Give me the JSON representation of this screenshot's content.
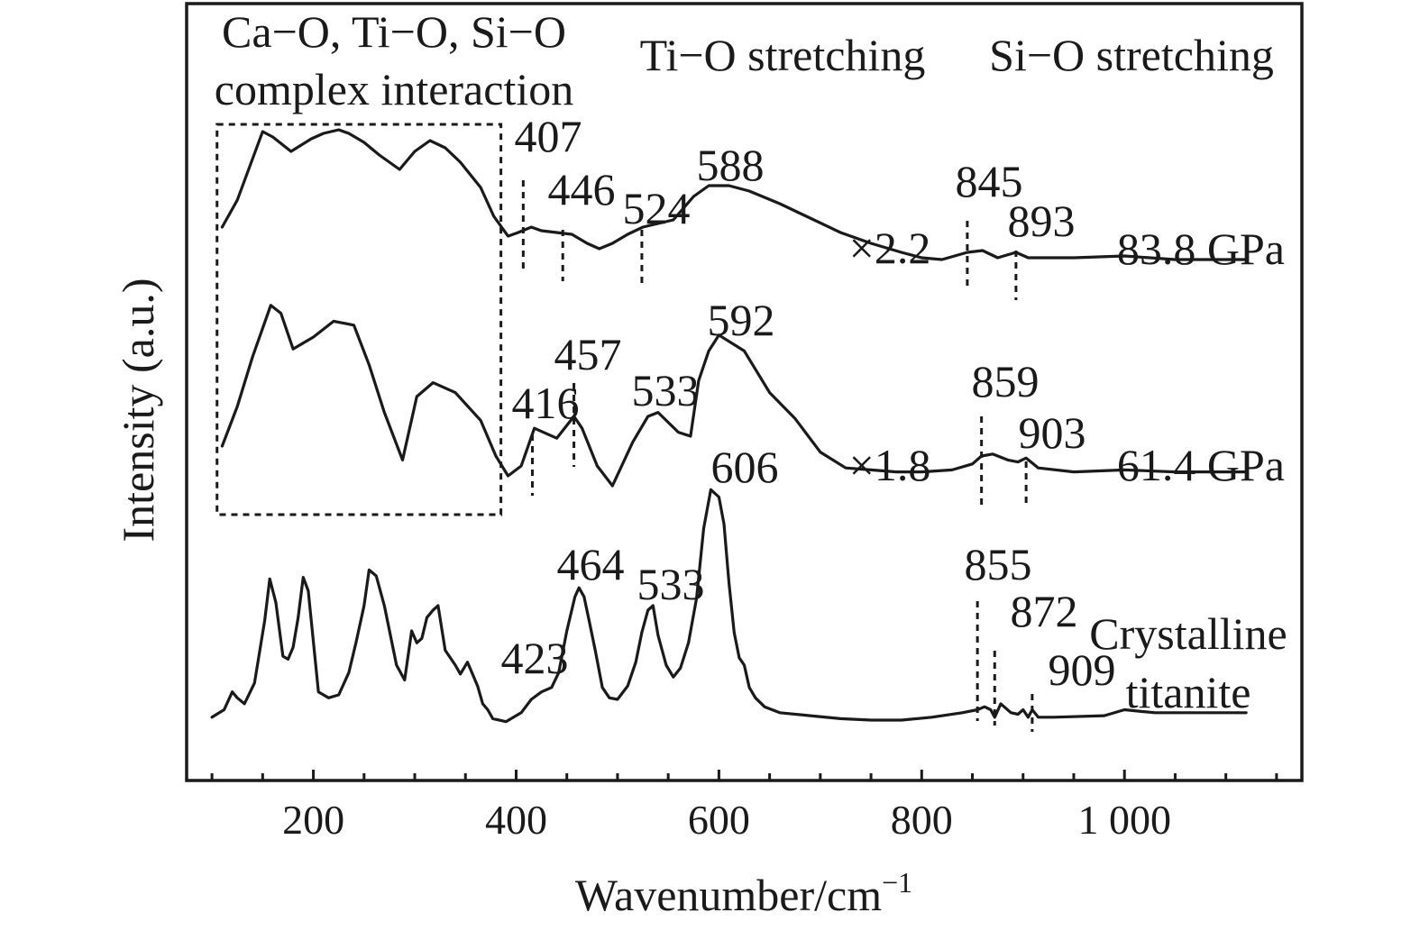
{
  "chart_data": {
    "type": "line",
    "title": "",
    "xlabel": "Wavenumber/cm",
    "xlabel_superscript": "−1",
    "ylabel": "Intensity (a.u.)",
    "xlim": [
      75,
      1175
    ],
    "xticks": [
      200,
      400,
      600,
      800,
      1000
    ],
    "xtick_labels": [
      "200",
      "400",
      "600",
      "800",
      "1 000"
    ],
    "grid": false,
    "region_labels": [
      {
        "id": "region-complex",
        "lines": [
          "Ca−O, Ti−O, Si−O",
          "complex interaction"
        ]
      },
      {
        "id": "region-tio",
        "lines": [
          "Ti−O stretching"
        ]
      },
      {
        "id": "region-sio",
        "lines": [
          "Si−O stretching"
        ]
      }
    ],
    "highlight_box_range": [
      105,
      385
    ],
    "series": [
      {
        "name": "83.8 GPa",
        "scale_label": "×2.2",
        "x": [
          110,
          125,
          150,
          160,
          178,
          198,
          210,
          225,
          235,
          250,
          265,
          285,
          300,
          315,
          330,
          345,
          365,
          378,
          392,
          402,
          415,
          425,
          440,
          455,
          470,
          482,
          495,
          510,
          525,
          540,
          555,
          575,
          590,
          610,
          630,
          660,
          690,
          720,
          750,
          780,
          800,
          820,
          845,
          860,
          875,
          893,
          905,
          925,
          950,
          1000,
          1050,
          1100,
          1120
        ],
        "y": [
          30,
          45,
          83,
          80,
          72,
          79,
          82,
          84,
          82,
          77,
          70,
          62,
          72,
          78,
          74,
          66,
          52,
          36,
          25,
          27,
          30,
          28,
          27,
          26,
          21,
          18,
          21,
          26,
          30,
          32,
          34,
          47,
          53,
          53,
          50,
          43,
          35,
          27,
          21,
          16,
          13,
          12,
          16,
          17,
          13,
          16,
          13,
          13,
          13,
          14,
          12,
          12,
          12
        ],
        "peaks": [
          {
            "wavenumber": 407,
            "label": "407"
          },
          {
            "wavenumber": 446,
            "label": "446"
          },
          {
            "wavenumber": 524,
            "label": "524"
          },
          {
            "wavenumber": 588,
            "label": "588"
          },
          {
            "wavenumber": 845,
            "label": "845"
          },
          {
            "wavenumber": 893,
            "label": "893"
          }
        ]
      },
      {
        "name": "61.4 GPa",
        "scale_label": "×1.8",
        "x": [
          110,
          125,
          140,
          158,
          168,
          180,
          200,
          220,
          240,
          255,
          270,
          288,
          302,
          318,
          340,
          365,
          380,
          392,
          405,
          418,
          440,
          457,
          465,
          480,
          495,
          515,
          530,
          540,
          560,
          572,
          580,
          590,
          600,
          625,
          650,
          675,
          700,
          725,
          750,
          775,
          800,
          830,
          850,
          859,
          870,
          885,
          895,
          903,
          915,
          950,
          1000,
          1050,
          1100,
          1120
        ],
        "y": [
          25,
          45,
          70,
          96,
          92,
          74,
          80,
          88,
          86,
          66,
          42,
          18,
          50,
          57,
          52,
          38,
          20,
          10,
          15,
          34,
          29,
          40,
          34,
          15,
          5,
          27,
          40,
          42,
          32,
          30,
          58,
          73,
          81,
          73,
          52,
          39,
          22,
          14,
          13,
          12,
          12,
          13,
          16,
          20,
          21,
          18,
          17,
          19,
          14,
          12,
          13,
          12,
          12,
          12
        ],
        "peaks": [
          {
            "wavenumber": 416,
            "label": "416"
          },
          {
            "wavenumber": 457,
            "label": "457"
          },
          {
            "wavenumber": 533,
            "label": "533"
          },
          {
            "wavenumber": 592,
            "label": "592"
          },
          {
            "wavenumber": 859,
            "label": "859"
          },
          {
            "wavenumber": 903,
            "label": "903"
          }
        ]
      },
      {
        "name": "Crystalline titanite",
        "name_lines": [
          "Crystalline",
          "titanite"
        ],
        "x": [
          100,
          112,
          120,
          125,
          132,
          142,
          152,
          157,
          163,
          170,
          175,
          180,
          185,
          190,
          195,
          205,
          215,
          225,
          235,
          242,
          250,
          255,
          262,
          270,
          282,
          290,
          297,
          302,
          307,
          312,
          318,
          323,
          330,
          340,
          345,
          352,
          357,
          362,
          367,
          372,
          377,
          390,
          405,
          415,
          425,
          435,
          442,
          450,
          458,
          462,
          467,
          472,
          478,
          485,
          492,
          500,
          510,
          518,
          524,
          530,
          535,
          540,
          548,
          555,
          562,
          570,
          578,
          585,
          592,
          600,
          605,
          610,
          615,
          620,
          625,
          630,
          636,
          645,
          660,
          690,
          720,
          750,
          780,
          810,
          840,
          855,
          862,
          868,
          872,
          878,
          888,
          895,
          900,
          905,
          909,
          915,
          930,
          980,
          1000,
          1030,
          1080,
          1120
        ],
        "y": [
          5,
          10,
          22,
          18,
          14,
          28,
          70,
          98,
          82,
          46,
          44,
          52,
          72,
          99,
          90,
          22,
          18,
          20,
          35,
          55,
          80,
          104,
          100,
          80,
          40,
          30,
          63,
          55,
          58,
          72,
          77,
          80,
          50,
          40,
          34,
          42,
          34,
          26,
          14,
          10,
          4,
          2,
          8,
          17,
          22,
          25,
          35,
          63,
          86,
          92,
          86,
          70,
          50,
          25,
          18,
          17,
          26,
          42,
          62,
          77,
          80,
          60,
          40,
          32,
          38,
          55,
          85,
          132,
          158,
          153,
          135,
          95,
          62,
          45,
          40,
          25,
          18,
          12,
          8,
          6,
          4,
          3,
          3,
          5,
          8,
          10,
          12,
          10,
          5,
          14,
          8,
          7,
          10,
          5,
          10,
          5,
          5,
          6,
          10,
          8,
          8,
          8
        ],
        "peaks": [
          {
            "wavenumber": 423,
            "label": "423"
          },
          {
            "wavenumber": 464,
            "label": "464"
          },
          {
            "wavenumber": 533,
            "label": "533"
          },
          {
            "wavenumber": 606,
            "label": "606"
          },
          {
            "wavenumber": 855,
            "label": "855"
          },
          {
            "wavenumber": 872,
            "label": "872"
          },
          {
            "wavenumber": 909,
            "label": "909"
          }
        ]
      }
    ]
  }
}
